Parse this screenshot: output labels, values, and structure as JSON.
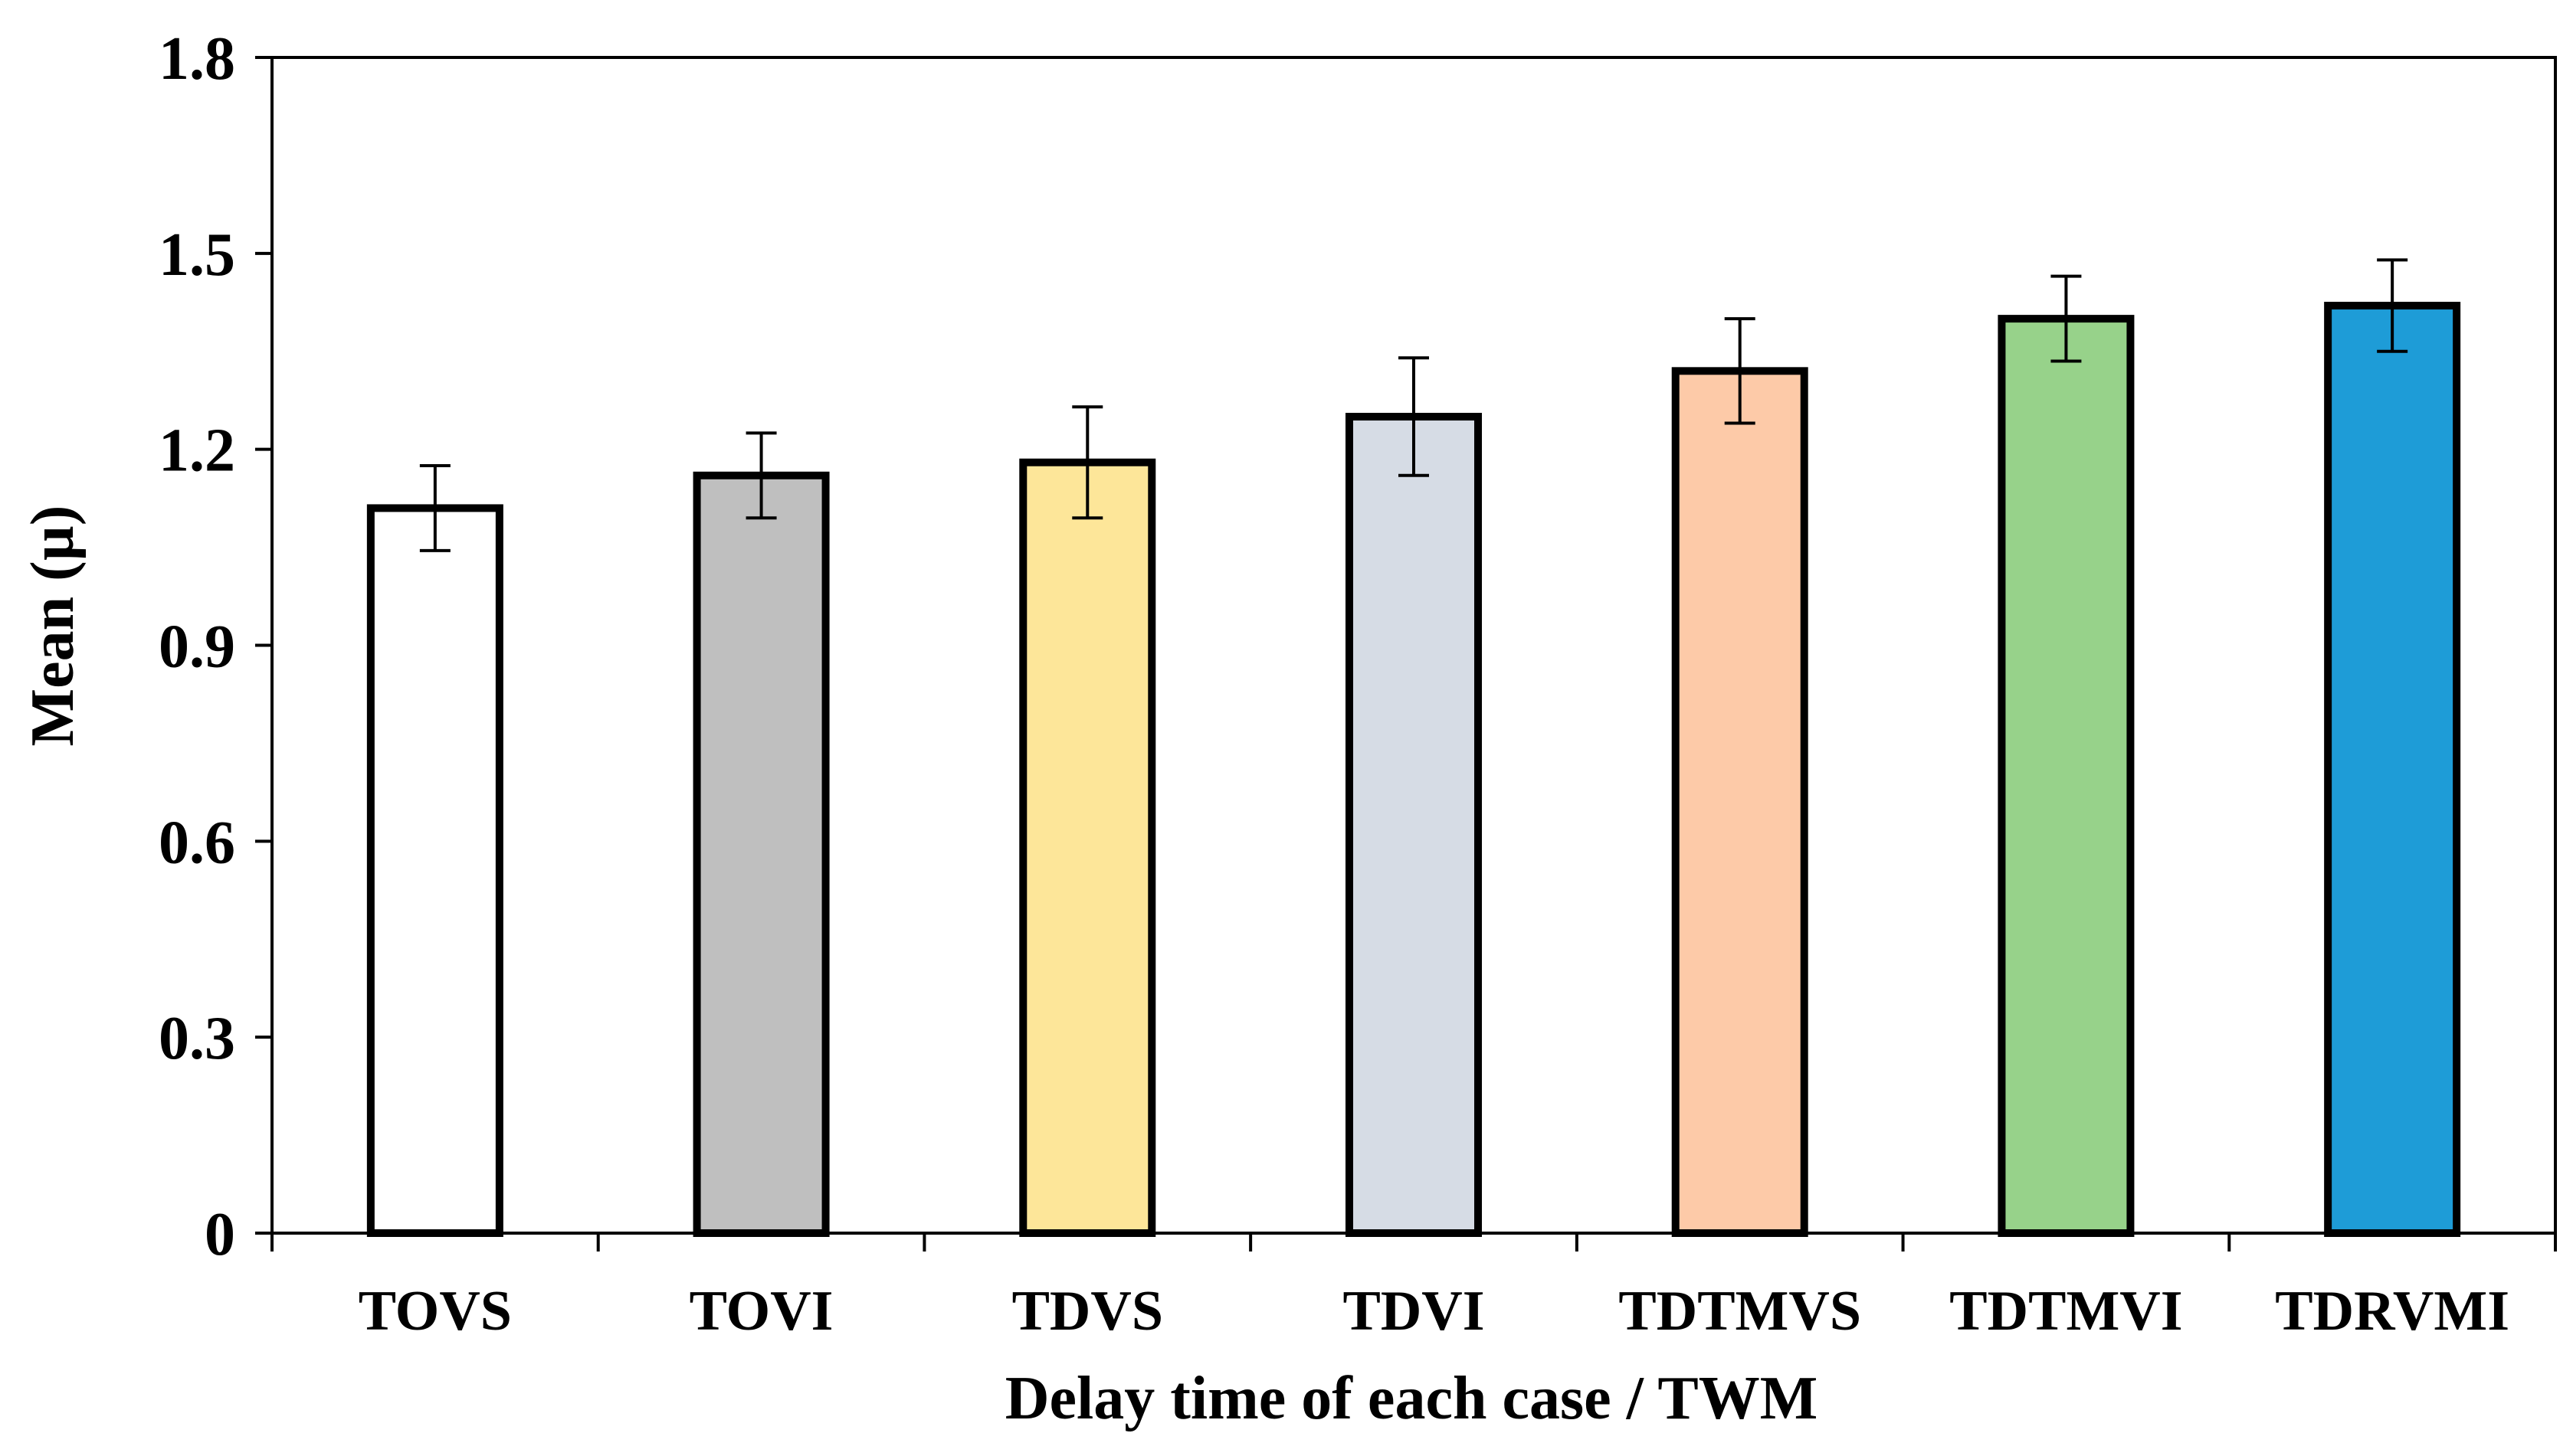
{
  "chart_data": {
    "type": "bar",
    "title": "",
    "xlabel": "Delay time of each case / TWM",
    "ylabel": "Mean (µ)",
    "ylim": [
      0,
      1.8
    ],
    "yticks": [
      "0",
      "0.3",
      "0.6",
      "0.9",
      "1.2",
      "1.5",
      "1.8"
    ],
    "ytick_values": [
      0,
      0.3,
      0.6,
      0.9,
      1.2,
      1.5,
      1.8
    ],
    "categories": [
      "TOVS",
      "TOVI",
      "TDVS",
      "TDVI",
      "TDTMVS",
      "TDTMVI",
      "TDRVMI"
    ],
    "values": [
      1.11,
      1.16,
      1.18,
      1.25,
      1.32,
      1.4,
      1.42
    ],
    "error": [
      0.065,
      0.065,
      0.085,
      0.09,
      0.08,
      0.065,
      0.07
    ],
    "colors": [
      "#ffffff",
      "#bfbfbf",
      "#fde699",
      "#d6dce5",
      "#fdcaa8",
      "#97d28a",
      "#1e9cd7"
    ],
    "grid": false,
    "legend": "none"
  }
}
